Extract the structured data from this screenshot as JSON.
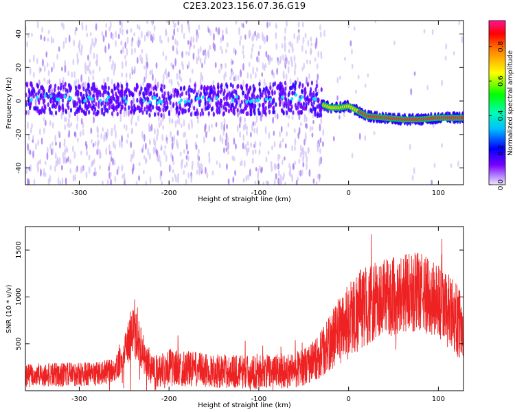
{
  "title": "C2E3.2023.156.07.36.G19",
  "chart_data": [
    {
      "type": "heatmap",
      "xlabel": "Height of straight line (km)",
      "ylabel": "Frequency (Hz)",
      "xlim": [
        -360,
        128
      ],
      "ylim": [
        -50,
        48
      ],
      "x_ticks": [
        -300,
        -200,
        -100,
        0,
        100
      ],
      "y_ticks": [
        -40,
        -20,
        0,
        20,
        40
      ],
      "grid": false,
      "colorbar": {
        "label": "Normalized spectral amplitude",
        "range": [
          0.0,
          0.95
        ],
        "ticks": [
          0.0,
          0.2,
          0.4,
          0.6,
          0.8
        ],
        "colormap": "rainbow-light-purple-to-pink"
      },
      "ridge": {
        "x": [
          -360,
          -300,
          -250,
          -200,
          -150,
          -100,
          -60,
          -40,
          -30,
          -20,
          -10,
          0,
          10,
          20,
          40,
          60,
          80,
          100,
          128
        ],
        "freq": [
          2,
          1,
          1,
          0,
          1,
          1,
          2,
          2,
          -2,
          -4,
          -4,
          -3,
          -6,
          -9,
          -10,
          -11,
          -11,
          -10,
          -10
        ]
      },
      "colors": {
        "low": "#c9b6f2",
        "mid": "#7a00ff",
        "high": "#ff1f4b"
      }
    },
    {
      "type": "line",
      "xlabel": "Height of straight line (km)",
      "ylabel": "SNR (10 * v/v)",
      "xlim": [
        -360,
        128
      ],
      "ylim": [
        0,
        1750
      ],
      "x_ticks": [
        -300,
        -200,
        -100,
        0,
        100
      ],
      "y_ticks": [
        500,
        1000,
        1500
      ],
      "grid": false,
      "series": [
        {
          "color": "#ee2222",
          "x": [
            -360,
            -320,
            -280,
            -260,
            -250,
            -242,
            -235,
            -225,
            -215,
            -200,
            -150,
            -100,
            -60,
            -40,
            -25,
            -15,
            -5,
            10,
            30,
            60,
            80,
            100,
            115,
            128
          ],
          "mean": [
            160,
            170,
            180,
            220,
            380,
            620,
            560,
            300,
            210,
            250,
            210,
            200,
            220,
            300,
            450,
            600,
            700,
            850,
            950,
            1050,
            1050,
            950,
            800,
            700
          ],
          "amplitude": [
            130,
            130,
            130,
            130,
            170,
            300,
            240,
            190,
            180,
            200,
            180,
            180,
            190,
            220,
            280,
            350,
            400,
            450,
            420,
            430,
            420,
            420,
            400,
            380
          ]
        }
      ]
    }
  ]
}
